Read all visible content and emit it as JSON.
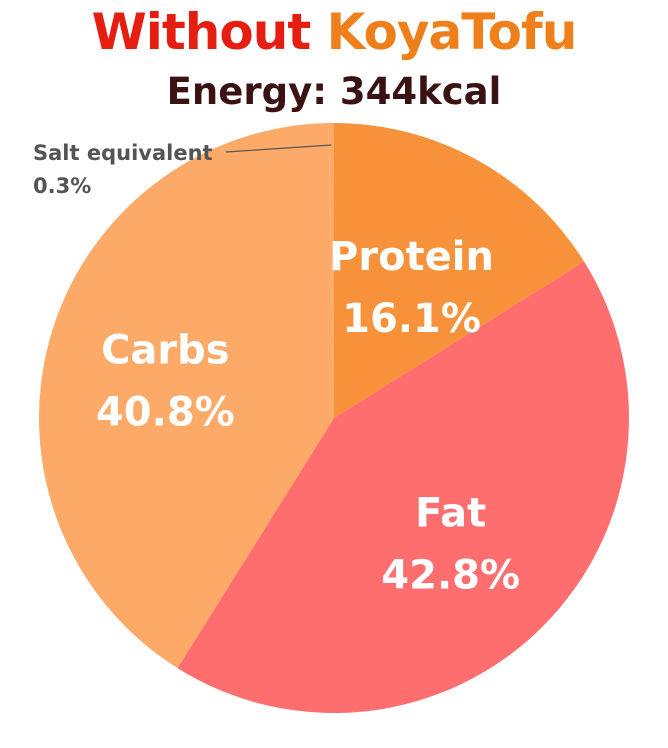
{
  "title": {
    "prefix": "Without ",
    "brand": "KoyaTofu",
    "prefix_color": "#e41f12",
    "brand_color": "#ee7f1a"
  },
  "subtitle": "Energy: 344kcal",
  "subtitle_color": "#3a1214",
  "chart_data": {
    "type": "pie",
    "title": "Without KoyaTofu",
    "subtitle": "Energy: 344kcal",
    "start": "top",
    "direction": "clockwise",
    "slices": [
      {
        "name": "Protein",
        "value": 16.1,
        "label": "16.1%",
        "color": "#f7923a"
      },
      {
        "name": "Fat",
        "value": 42.8,
        "label": "42.8%",
        "color": "#fe6e6f"
      },
      {
        "name": "Carbs",
        "value": 40.8,
        "label": "40.8%",
        "color": "#fdaa68"
      },
      {
        "name": "Salt equivalent",
        "value": 0.3,
        "label": "0.3%",
        "color": "#fdaa68"
      }
    ],
    "callout_color": "#545454"
  }
}
